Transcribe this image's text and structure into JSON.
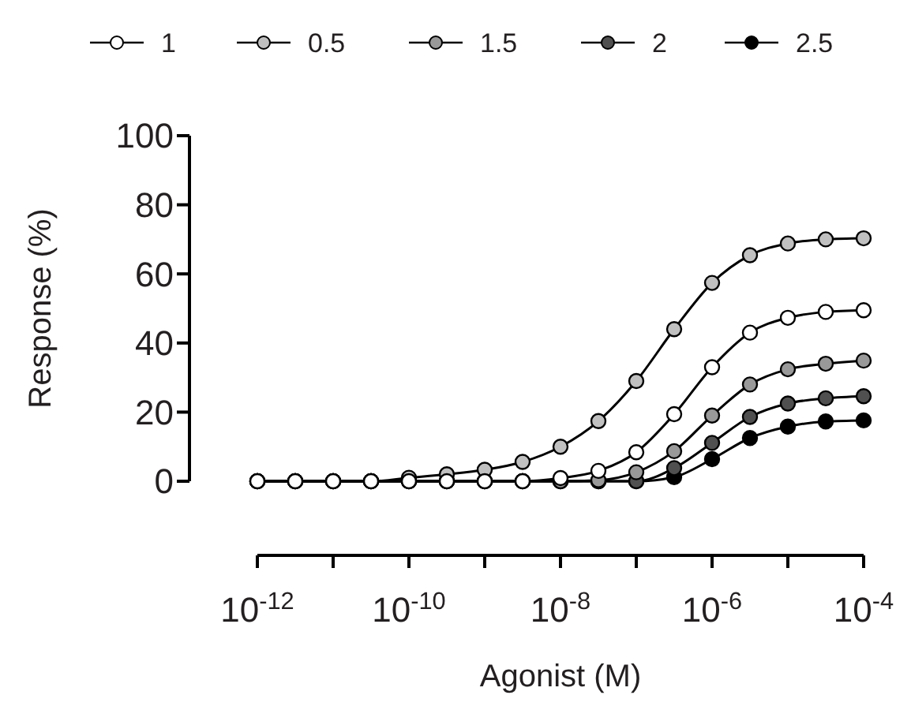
{
  "chart_data": {
    "type": "line",
    "xlabel": "Agonist (M)",
    "ylabel": "Response (%)",
    "x": [
      1e-12,
      3.162e-12,
      1e-11,
      3.162e-11,
      1e-10,
      3.162e-10,
      1e-09,
      3.162e-09,
      1e-08,
      3.162e-08,
      1e-07,
      3.162e-07,
      1e-06,
      3.162e-06,
      1e-05,
      3.162e-05,
      0.0001
    ],
    "series": [
      {
        "name": "1",
        "color": "#ffffff",
        "values": [
          0,
          0,
          0,
          0,
          0,
          0,
          0,
          0,
          0.9,
          3,
          8.4,
          19.4,
          33,
          43,
          47.3,
          49,
          49.5
        ]
      },
      {
        "name": "0.5",
        "color": "#c0c0c0",
        "values": [
          0,
          0,
          0,
          0,
          1,
          2,
          3.3,
          5.6,
          10,
          17.4,
          29,
          44,
          57.4,
          65.4,
          68.8,
          70,
          70.3
        ]
      },
      {
        "name": "1.5",
        "color": "#999999",
        "values": [
          0,
          0,
          0,
          0,
          0,
          0,
          0,
          0,
          0,
          0.3,
          2.6,
          8.7,
          19,
          28,
          32.4,
          34,
          34.9
        ]
      },
      {
        "name": "2",
        "color": "#505050",
        "values": [
          0,
          0,
          0,
          0,
          0,
          0,
          0,
          0,
          0,
          0,
          0,
          3.8,
          11.1,
          18.6,
          22.5,
          24,
          24.6
        ]
      },
      {
        "name": "2.5",
        "color": "#000000",
        "values": [
          0,
          0,
          0,
          0,
          0,
          0,
          0,
          0,
          0,
          0,
          0,
          1.2,
          6.4,
          12.5,
          15.8,
          17.3,
          17.6
        ]
      }
    ],
    "log": "x",
    "xlim": [
      1e-12,
      0.0001
    ],
    "xticks": [
      {
        "value": 1e-12,
        "label": "10$^{-12}$"
      },
      {
        "value": 1e-10,
        "label": "10$^{-10}$"
      },
      {
        "value": 1e-08,
        "label": "10$^{-8}$"
      },
      {
        "value": 1e-06,
        "label": "10$^{-6}$"
      },
      {
        "value": 0.0001,
        "label": "10$^{-4}$"
      }
    ],
    "ylim": [
      0,
      100
    ],
    "yticks": [
      0,
      20,
      40,
      60,
      80,
      100
    ],
    "grid": false,
    "legend": "top",
    "marker": "circle",
    "line_style": "solid"
  }
}
